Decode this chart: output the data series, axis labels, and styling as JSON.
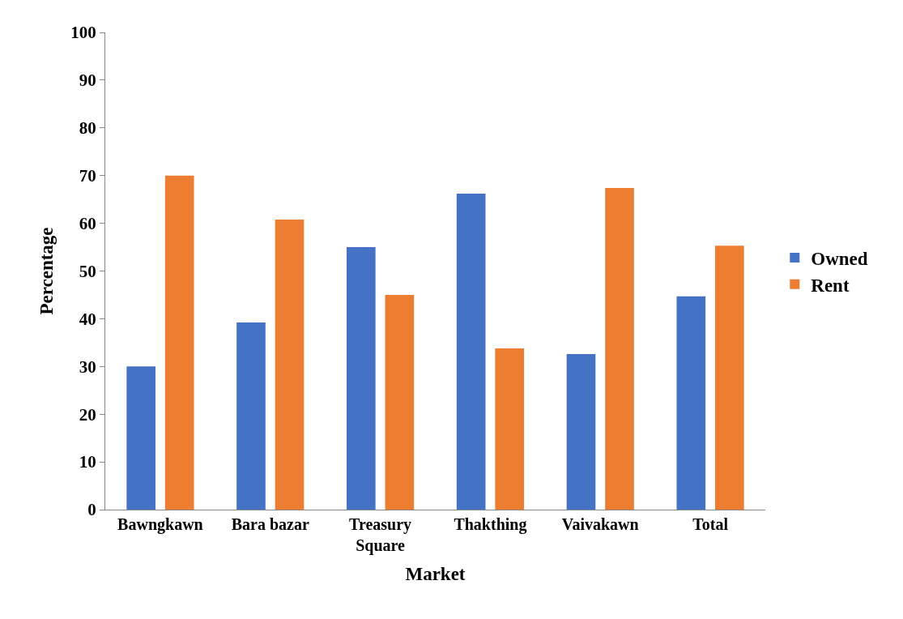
{
  "chart_data": {
    "type": "bar",
    "xlabel": "Market",
    "ylabel": "Percentage",
    "categories": [
      "Bawngkawn",
      "Bara bazar",
      "Treasury Square",
      "Thakthing",
      "Vaivakawn",
      "Total"
    ],
    "series": [
      {
        "name": "Owned",
        "color": "#4472c4",
        "values": [
          30,
          39.2,
          55,
          66.2,
          32.6,
          44.7
        ]
      },
      {
        "name": "Rent",
        "color": "#ed7d31",
        "values": [
          70,
          60.8,
          45,
          33.8,
          67.4,
          55.3
        ]
      }
    ],
    "ylim": [
      0,
      100
    ],
    "yticks": [
      0,
      10,
      20,
      30,
      40,
      50,
      60,
      70,
      80,
      90,
      100
    ],
    "legend": "right"
  }
}
